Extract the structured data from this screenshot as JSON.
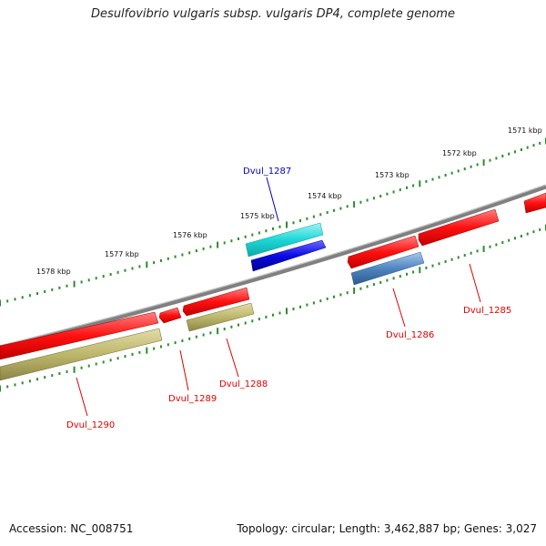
{
  "title": "Desulfovibrio vulgaris subsp. vulgaris DP4, complete genome",
  "footer": {
    "accession": "Accession: NC_008751",
    "summary": "Topology: circular; Length: 3,462,887 bp; Genes: 3,027"
  },
  "ticks": [
    {
      "label": "1571 kbp"
    },
    {
      "label": "1572 kbp"
    },
    {
      "label": "1573 kbp"
    },
    {
      "label": "1574 kbp"
    },
    {
      "label": "1575 kbp"
    },
    {
      "label": "1576 kbp"
    },
    {
      "label": "1577 kbp"
    },
    {
      "label": "1578 kbp"
    }
  ],
  "genes": [
    {
      "label": "Dvul_1285",
      "color": "#e00000"
    },
    {
      "label": "Dvul_1286",
      "color": "#e00000"
    },
    {
      "label": "Dvul_1287",
      "color": "#0000cc"
    },
    {
      "label": "Dvul_1288",
      "color": "#e00000"
    },
    {
      "label": "Dvul_1289",
      "color": "#e00000"
    },
    {
      "label": "Dvul_1290",
      "color": "#e00000"
    }
  ],
  "colors": {
    "backbone": "#8a8a8a",
    "cds_red": "#ff1a1a",
    "gene_olive": "#bdb76b",
    "cyan": "#1ed6d6",
    "blue": "#0a0ae6",
    "steel": "#4f86c0",
    "tick_green": "#2e8b2e"
  }
}
